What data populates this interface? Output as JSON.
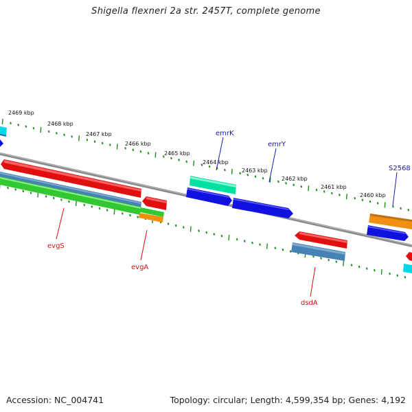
{
  "title": "Shigella flexneri 2a str. 2457T, complete genome",
  "footer": {
    "accession": "Accession: NC_004741",
    "summary": "Topology: circular; Length: 4,599,354 bp; Genes: 4,192"
  },
  "kbp_labels": [
    "2469 kbp",
    "2468 kbp",
    "2467 kbp",
    "2466 kbp",
    "2465 kbp",
    "2464 kbp",
    "2463 kbp",
    "2462 kbp",
    "2461 kbp",
    "2460 kbp"
  ],
  "gene_labels": {
    "emrK": "emrK",
    "emrY": "emrY",
    "S2568": "S2568",
    "evgS": "evgS",
    "evgA": "evgA",
    "dsdA": "dsdA"
  },
  "colors": {
    "forward_label": "#1a1aa8",
    "reverse_label": "#d01010",
    "tick": "#1c8c1c",
    "backbone": "#8a8a8a"
  }
}
